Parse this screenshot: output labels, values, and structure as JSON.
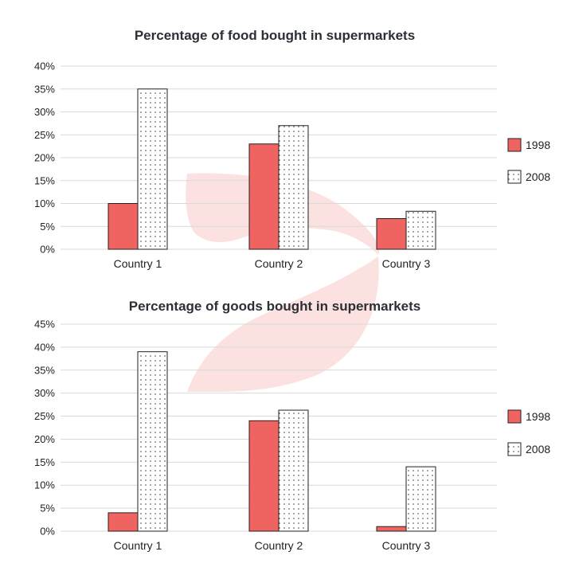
{
  "colors": {
    "series_1998": "#ef6461",
    "pattern_dot": "#333333",
    "bar_stroke": "#222222",
    "watermark": "#fbe2e1"
  },
  "chart_data": [
    {
      "type": "bar",
      "title": "Percentage of food bought in supermarkets",
      "categories": [
        "Country 1",
        "Country 2",
        "Country 3"
      ],
      "series": [
        {
          "name": "1998",
          "values": [
            10,
            23,
            6.7
          ]
        },
        {
          "name": "2008",
          "values": [
            35,
            27,
            8.3
          ]
        }
      ],
      "ylim": [
        0,
        40
      ],
      "yticks": [
        0,
        5,
        10,
        15,
        20,
        25,
        30,
        35,
        40
      ],
      "tick_labels": [
        "0%",
        "5%",
        "10%",
        "15%",
        "20%",
        "25%",
        "30%",
        "35%",
        "40%"
      ],
      "xlabel": "",
      "ylabel": "",
      "grid": true,
      "legend": "right"
    },
    {
      "type": "bar",
      "title": "Percentage of goods bought in supermarkets",
      "categories": [
        "Country 1",
        "Country 2",
        "Country 3"
      ],
      "series": [
        {
          "name": "1998",
          "values": [
            4,
            24,
            1
          ]
        },
        {
          "name": "2008",
          "values": [
            39,
            26.3,
            14
          ]
        }
      ],
      "ylim": [
        0,
        45
      ],
      "yticks": [
        0,
        5,
        10,
        15,
        20,
        25,
        30,
        35,
        40,
        45
      ],
      "tick_labels": [
        "0%",
        "5%",
        "10%",
        "15%",
        "20%",
        "25%",
        "30%",
        "35%",
        "40%",
        "45%"
      ],
      "xlabel": "",
      "ylabel": "",
      "grid": true,
      "legend": "right"
    }
  ]
}
